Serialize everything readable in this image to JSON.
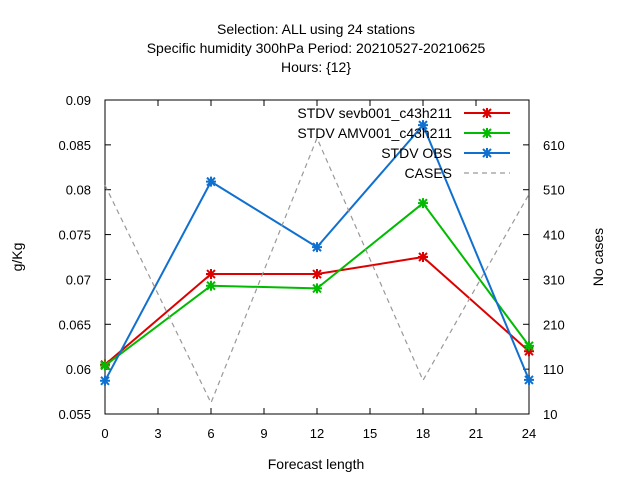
{
  "chart_data": {
    "type": "line",
    "title_lines": [
      "Selection: ALL using    24 stations",
      "Specific humidity 300hPa   Period: 20210527-20210625",
      "Hours: {12}"
    ],
    "xlabel": "Forecast length",
    "ylabel": "g/Kg",
    "y2label": "No cases",
    "x": [
      0,
      6,
      12,
      18,
      24
    ],
    "xticks": [
      "0",
      "3",
      "6",
      "9",
      "12",
      "15",
      "18",
      "21",
      "24"
    ],
    "xlim": [
      0,
      24
    ],
    "ylim": [
      0.055,
      0.09
    ],
    "yticks": [
      "0.055",
      "0.06",
      "0.065",
      "0.07",
      "0.075",
      "0.08",
      "0.085",
      "0.09"
    ],
    "y2lim": [
      10,
      710
    ],
    "y2ticks": [
      "10",
      "110",
      "210",
      "310",
      "410",
      "510",
      "610"
    ],
    "grid": false,
    "legend_position": "top-right",
    "series": [
      {
        "name": "STDV sevb001_c43h211",
        "color": "#dd0000",
        "axis": "y1",
        "dash": false,
        "marker": true,
        "values": [
          0.0605,
          0.0706,
          0.0706,
          0.0725,
          0.062
        ]
      },
      {
        "name": "STDV AMV001_c43h211",
        "color": "#00bb00",
        "axis": "y1",
        "dash": false,
        "marker": true,
        "values": [
          0.0604,
          0.0693,
          0.069,
          0.0785,
          0.0626
        ]
      },
      {
        "name": "STDV OBS",
        "color": "#1070d0",
        "axis": "y1",
        "dash": false,
        "marker": true,
        "values": [
          0.0587,
          0.0809,
          0.0736,
          0.0872,
          0.0588
        ]
      },
      {
        "name": "CASES",
        "color": "#999999",
        "axis": "y2",
        "dash": true,
        "marker": false,
        "values": [
          520,
          35,
          625,
          85,
          500
        ]
      }
    ]
  }
}
